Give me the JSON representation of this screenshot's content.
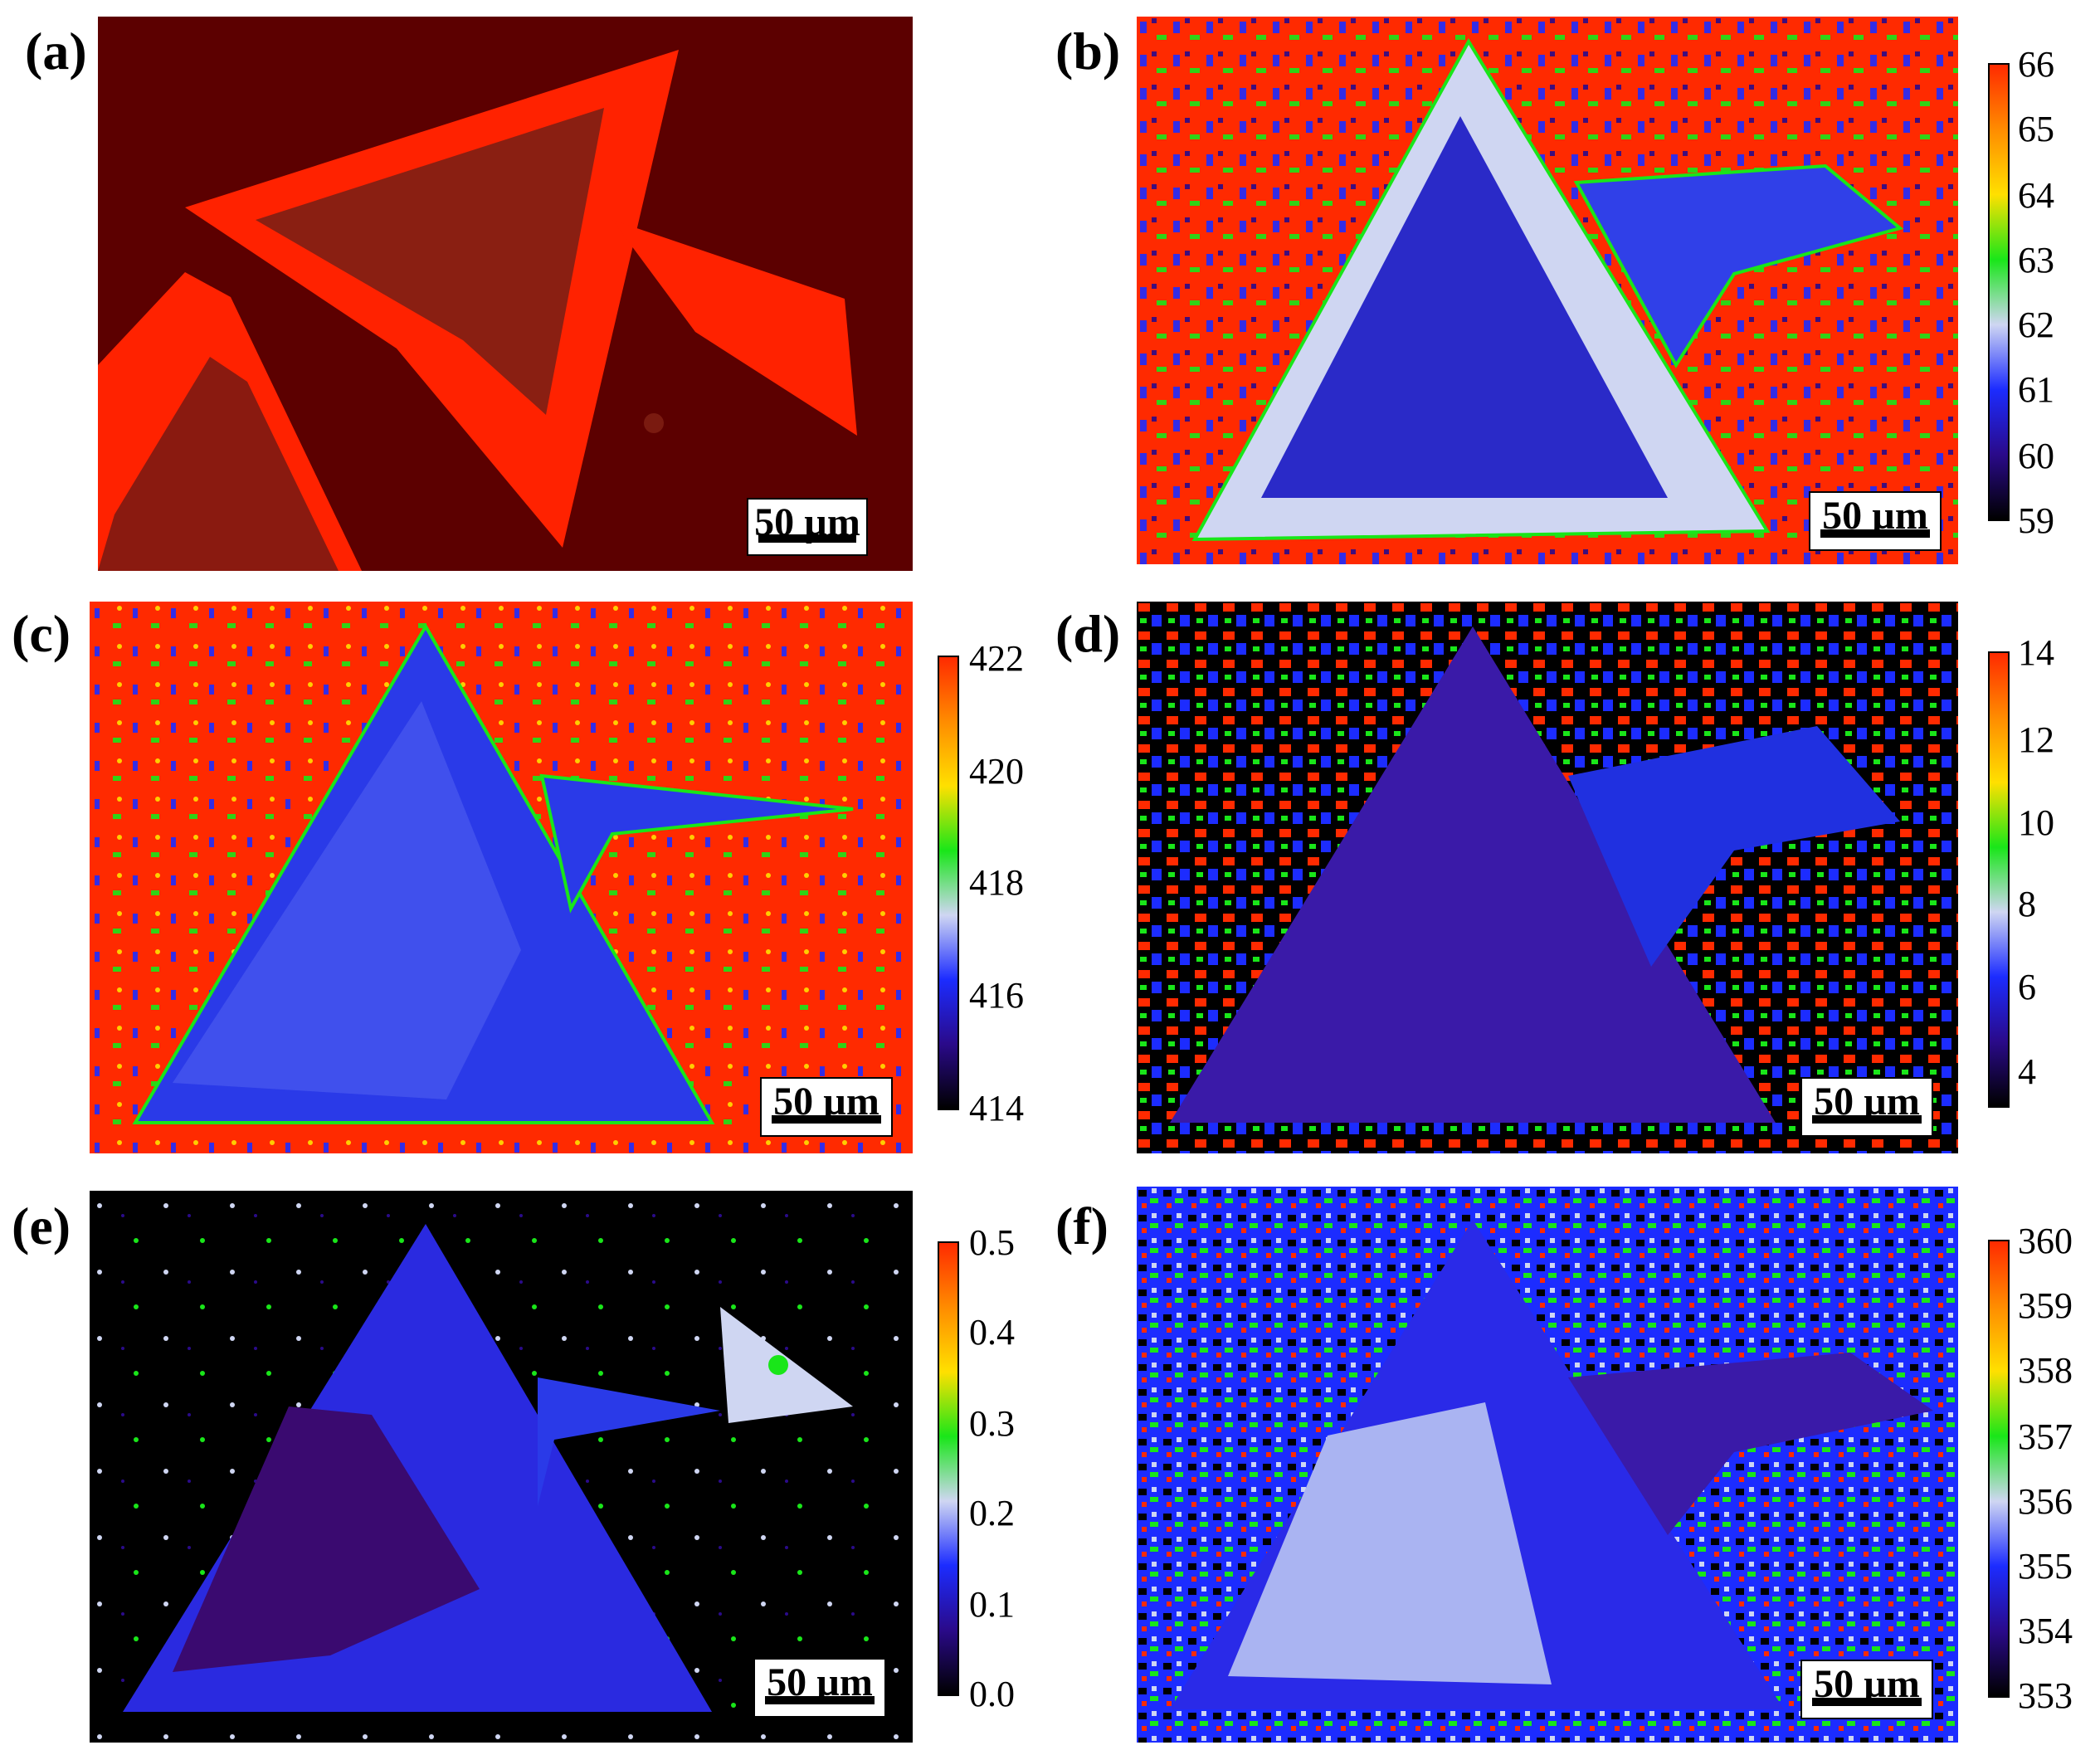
{
  "figure": {
    "panels": [
      {
        "label": "(a)",
        "scale_bar": "50 µm"
      },
      {
        "label": "(b)",
        "scale_bar": "50 µm",
        "colorbar": {
          "ticks": [
            "66",
            "65",
            "64",
            "63",
            "62",
            "61",
            "60",
            "59"
          ]
        }
      },
      {
        "label": "(c)",
        "scale_bar": "50 µm",
        "colorbar": {
          "ticks": [
            "422",
            "420",
            "418",
            "416",
            "414"
          ]
        }
      },
      {
        "label": "(d)",
        "scale_bar": "50 µm",
        "colorbar": {
          "ticks": [
            "14",
            "12",
            "10",
            "8",
            "6",
            "4"
          ]
        }
      },
      {
        "label": "(e)",
        "scale_bar": "50 µm",
        "colorbar": {
          "ticks": [
            "0.5",
            "0.4",
            "0.3",
            "0.2",
            "0.1",
            "0.0"
          ]
        }
      },
      {
        "label": "(f)",
        "scale_bar": "50 µm",
        "colorbar": {
          "ticks": [
            "360",
            "359",
            "358",
            "357",
            "356",
            "355",
            "354",
            "353"
          ]
        }
      }
    ]
  },
  "colors": {
    "colormap": [
      "#ff2a00",
      "#ff8c00",
      "#ffe000",
      "#19e619",
      "#cfd6f2",
      "#1c2cff",
      "#2a0a8a",
      "#000000"
    ],
    "optical_bg": "#5c0000",
    "optical_flake": "#ff2200"
  }
}
